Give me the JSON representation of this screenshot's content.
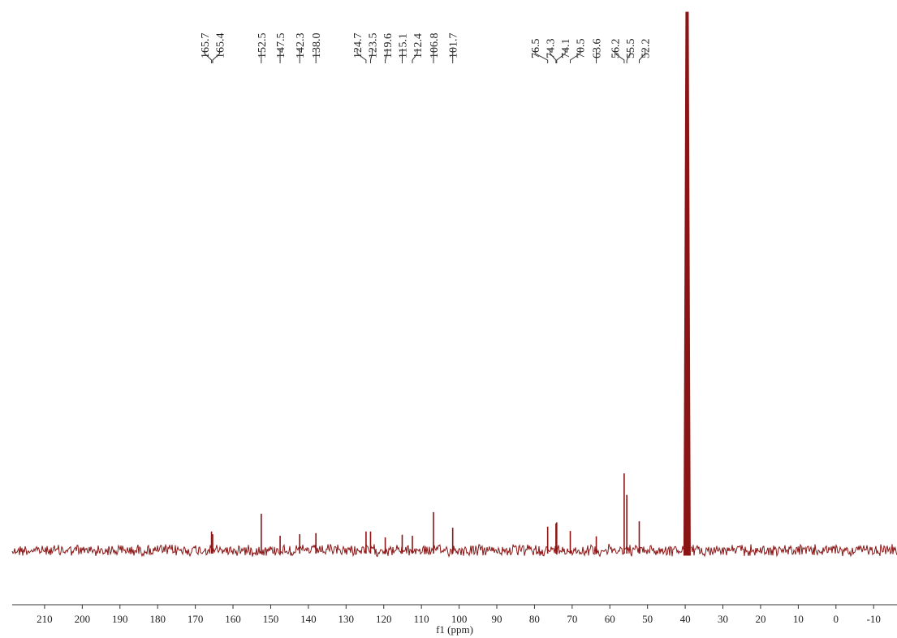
{
  "chart_data": {
    "type": "nmr",
    "x_label": "f1 (ppm)",
    "x": [
      165.7,
      165.4,
      152.5,
      147.5,
      142.3,
      138.0,
      124.7,
      123.5,
      119.6,
      115.1,
      112.4,
      106.8,
      101.7,
      76.5,
      74.3,
      74.1,
      70.5,
      63.6,
      56.2,
      55.5,
      52.2
    ],
    "peak_labels": [
      "165.7",
      "165.4",
      "152.5",
      "147.5",
      "142.3",
      "138.0",
      "124.7",
      "123.5",
      "119.6",
      "115.1",
      "112.4",
      "106.8",
      "101.7",
      "76.5",
      "74.3",
      "74.1",
      "70.5",
      "63.6",
      "56.2",
      "55.5",
      "52.2"
    ],
    "values": [
      3.5,
      3,
      6.8,
      2.7,
      3,
      3.2,
      3.5,
      3.5,
      2.4,
      2.9,
      2.7,
      7.1,
      4.2,
      4.4,
      5,
      5.2,
      3.6,
      2.6,
      14.3,
      10.3,
      5.4
    ],
    "solvent_peak": {
      "x": 39.5,
      "value": 100
    },
    "xlim": [
      218.6,
      -16.2
    ],
    "ylim": [
      0,
      100
    ],
    "xticks": [
      210,
      200,
      190,
      180,
      170,
      160,
      150,
      140,
      130,
      120,
      110,
      100,
      90,
      80,
      70,
      60,
      50,
      40,
      30,
      20,
      10,
      0,
      -10
    ],
    "color": "#8b1515"
  }
}
